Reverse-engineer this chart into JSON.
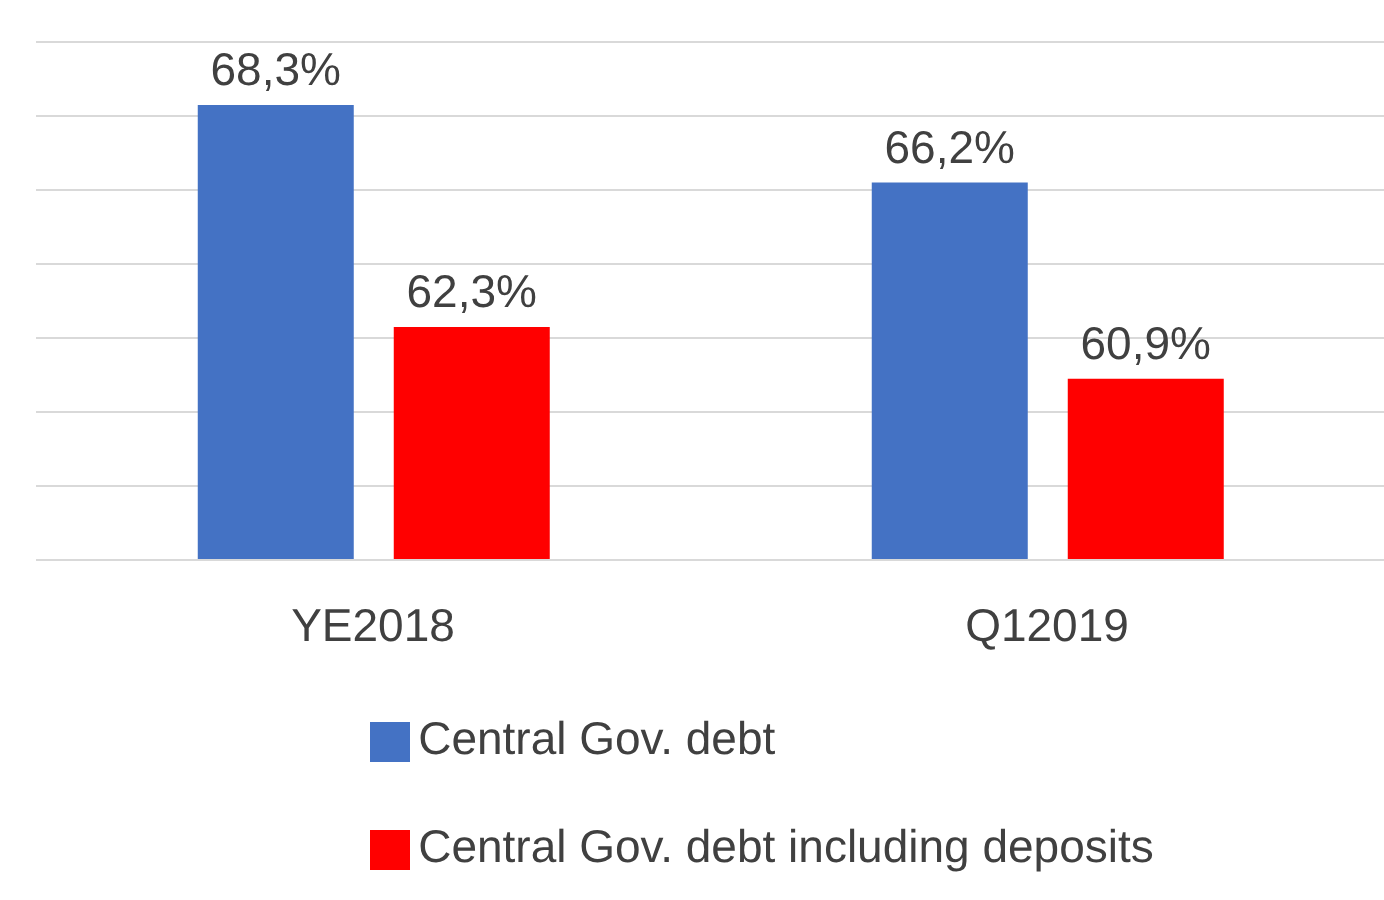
{
  "chart_data": {
    "type": "bar",
    "categories": [
      "YE2018",
      "Q12019"
    ],
    "series": [
      {
        "name": "Central Gov. debt",
        "color": "#4472c4",
        "values": [
          68.3,
          66.2
        ],
        "value_labels": [
          "68,3%",
          "66,2%"
        ]
      },
      {
        "name": "Central Gov. debt including deposits",
        "color": "#ff0000",
        "values": [
          62.3,
          60.9
        ],
        "value_labels": [
          "62,3%",
          "60,9%"
        ]
      }
    ],
    "ylim": [
      56,
      70
    ],
    "yticks": [
      56,
      58,
      60,
      62,
      64,
      66,
      68,
      70
    ],
    "grid": "y",
    "tick_labels": "x",
    "legend": "bottom"
  }
}
